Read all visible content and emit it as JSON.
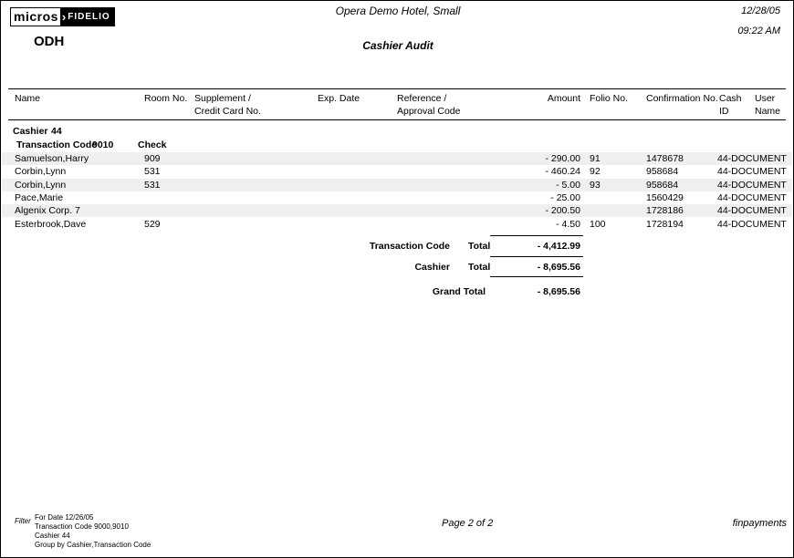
{
  "header": {
    "logo": {
      "micros": "micros",
      "arrow": "›",
      "fidelio": "FIDELIO"
    },
    "property_code": "ODH",
    "hotel_name": "Opera Demo Hotel, Small",
    "report_title": "Cashier Audit",
    "print_date": "12/28/05",
    "print_time": "09:22 AM"
  },
  "table": {
    "columns": {
      "name": "Name",
      "room": "Room No.",
      "supplement_line1": "Supplement /",
      "supplement_line2": "Credit Card No.",
      "exp_date": "Exp. Date",
      "reference_line1": "Reference /",
      "reference_line2": "Approval Code",
      "amount": "Amount",
      "folio": "Folio No.",
      "confirmation": "Confirmation No.",
      "cash_line1": "Cash",
      "cash_line2": "ID",
      "user_line1": "User",
      "user_line2": "Name"
    },
    "group": {
      "cashier_label": "Cashier",
      "cashier_value": "44",
      "txn_code_label": "Transaction Code",
      "txn_code_value": "9010",
      "txn_code_type": "Check"
    },
    "rows": [
      {
        "name": "Samuelson,Harry",
        "room": "909",
        "amount": "- 290.00",
        "folio": "91",
        "confirmation": "1478678",
        "user": "44-DOCUMENT"
      },
      {
        "name": "Corbin,Lynn",
        "room": "531",
        "amount": "- 460.24",
        "folio": "92",
        "confirmation": "958684",
        "user": "44-DOCUMENT"
      },
      {
        "name": "Corbin,Lynn",
        "room": "531",
        "amount": "- 5.00",
        "folio": "93",
        "confirmation": "958684",
        "user": "44-DOCUMENT"
      },
      {
        "name": "Pace,Marie",
        "room": "",
        "amount": "- 25.00",
        "folio": "",
        "confirmation": "1560429",
        "user": "44-DOCUMENT"
      },
      {
        "name": "Algenix Corp. 7",
        "room": "",
        "amount": "- 200.50",
        "folio": "",
        "confirmation": "1728186",
        "user": "44-DOCUMENT"
      },
      {
        "name": "Esterbrook,Dave",
        "room": "529",
        "amount": "- 4.50",
        "folio": "100",
        "confirmation": "1728194",
        "user": "44-DOCUMENT"
      }
    ]
  },
  "totals": {
    "txn_code_label": "Transaction Code",
    "txn_total_label": "Total",
    "txn_total_value": "- 4,412.99",
    "cashier_label": "Cashier",
    "cashier_total_label": "Total",
    "cashier_total_value": "- 8,695.56",
    "grand_total_label": "Grand Total",
    "grand_total_value": "- 8,695.56"
  },
  "footer": {
    "filter_label": "Filter",
    "filter_lines": [
      "For Date 12/26/05",
      "Transaction Code 9000,9010",
      "Cashier 44",
      "Group by Cashier,Transaction Code"
    ],
    "page_text": "Page 2  of 2",
    "report_file": "finpayments"
  },
  "colors": {
    "row_alt": "#efefef",
    "border": "#000000",
    "logo_bg": "#000000"
  }
}
